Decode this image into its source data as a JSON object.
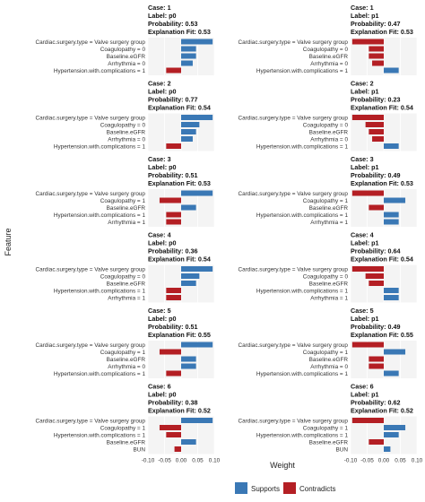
{
  "chart_data": {
    "type": "bar",
    "ylabel": "Feature",
    "xlabel": "Weight",
    "xlim": [
      -0.1,
      0.1
    ],
    "x_ticks": [
      -0.1,
      -0.05,
      0.0,
      0.05,
      0.1
    ],
    "x_tick_labels": [
      "-0.10",
      "-0.05",
      "0.00",
      "0.05",
      "0.10"
    ],
    "legend": {
      "placement": "bottom",
      "entries": [
        {
          "name": "Supports",
          "color": "#3a78b5"
        },
        {
          "name": "Contradicts",
          "color": "#b41f24"
        }
      ]
    },
    "panels": [
      {
        "case": "Case: 1",
        "label": "Label: p0",
        "probability": "Probability: 0.53",
        "fit": "Explanation Fit: 0.53",
        "bars": [
          {
            "feature": "Cardiac.surgery.type = Valve surgery group",
            "weight": 0.095
          },
          {
            "feature": "Coagulopathy = 0",
            "weight": 0.045
          },
          {
            "feature": "Baseline.eGFR",
            "weight": 0.045
          },
          {
            "feature": "Arrhythmia = 0",
            "weight": 0.035
          },
          {
            "feature": "Hypertension.with.complications = 1",
            "weight": -0.045
          }
        ]
      },
      {
        "case": "Case: 1",
        "label": "Label: p1",
        "probability": "Probability: 0.47",
        "fit": "Explanation Fit: 0.53",
        "bars": [
          {
            "feature": "Cardiac.surgery.type = Valve surgery group",
            "weight": -0.095
          },
          {
            "feature": "Coagulopathy = 0",
            "weight": -0.045
          },
          {
            "feature": "Baseline.eGFR",
            "weight": -0.045
          },
          {
            "feature": "Arrhythmia = 0",
            "weight": -0.035
          },
          {
            "feature": "Hypertension.with.complications = 1",
            "weight": 0.045
          }
        ]
      },
      {
        "case": "Case: 2",
        "label": "Label: p0",
        "probability": "Probability: 0.77",
        "fit": "Explanation Fit: 0.54",
        "bars": [
          {
            "feature": "Cardiac.surgery.type = Valve surgery group",
            "weight": 0.095
          },
          {
            "feature": "Coagulopathy = 0",
            "weight": 0.055
          },
          {
            "feature": "Baseline.eGFR",
            "weight": 0.045
          },
          {
            "feature": "Arrhythmia = 0",
            "weight": 0.035
          },
          {
            "feature": "Hypertension.with.complications = 1",
            "weight": -0.045
          }
        ]
      },
      {
        "case": "Case: 2",
        "label": "Label: p1",
        "probability": "Probability: 0.23",
        "fit": "Explanation Fit: 0.54",
        "bars": [
          {
            "feature": "Cardiac.surgery.type = Valve surgery group",
            "weight": -0.095
          },
          {
            "feature": "Coagulopathy = 0",
            "weight": -0.055
          },
          {
            "feature": "Baseline.eGFR",
            "weight": -0.045
          },
          {
            "feature": "Arrhythmia = 0",
            "weight": -0.035
          },
          {
            "feature": "Hypertension.with.complications = 1",
            "weight": 0.045
          }
        ]
      },
      {
        "case": "Case: 3",
        "label": "Label: p0",
        "probability": "Probability: 0.51",
        "fit": "Explanation Fit: 0.53",
        "bars": [
          {
            "feature": "Cardiac.surgery.type = Valve surgery group",
            "weight": 0.095
          },
          {
            "feature": "Coagulopathy = 1",
            "weight": -0.065
          },
          {
            "feature": "Baseline.eGFR",
            "weight": 0.045
          },
          {
            "feature": "Hypertension.with.complications = 1",
            "weight": -0.045
          },
          {
            "feature": "Arrhythmia = 1",
            "weight": -0.045
          }
        ]
      },
      {
        "case": "Case: 3",
        "label": "Label: p1",
        "probability": "Probability: 0.49",
        "fit": "Explanation Fit: 0.53",
        "bars": [
          {
            "feature": "Cardiac.surgery.type = Valve surgery group",
            "weight": -0.095
          },
          {
            "feature": "Coagulopathy = 1",
            "weight": 0.065
          },
          {
            "feature": "Baseline.eGFR",
            "weight": -0.045
          },
          {
            "feature": "Hypertension.with.complications = 1",
            "weight": 0.045
          },
          {
            "feature": "Arrhythmia = 1",
            "weight": 0.045
          }
        ]
      },
      {
        "case": "Case: 4",
        "label": "Label: p0",
        "probability": "Probability: 0.36",
        "fit": "Explanation Fit: 0.54",
        "bars": [
          {
            "feature": "Cardiac.surgery.type = Valve surgery group",
            "weight": 0.095
          },
          {
            "feature": "Coagulopathy = 0",
            "weight": 0.055
          },
          {
            "feature": "Baseline.eGFR",
            "weight": 0.045
          },
          {
            "feature": "Hypertension.with.complications = 1",
            "weight": -0.045
          },
          {
            "feature": "Arrhythmia = 1",
            "weight": -0.045
          }
        ]
      },
      {
        "case": "Case: 4",
        "label": "Label: p1",
        "probability": "Probability: 0.64",
        "fit": "Explanation Fit: 0.54",
        "bars": [
          {
            "feature": "Cardiac.surgery.type = Valve surgery group",
            "weight": -0.095
          },
          {
            "feature": "Coagulopathy = 0",
            "weight": -0.055
          },
          {
            "feature": "Baseline.eGFR",
            "weight": -0.045
          },
          {
            "feature": "Hypertension.with.complications = 1",
            "weight": 0.045
          },
          {
            "feature": "Arrhythmia = 1",
            "weight": 0.045
          }
        ]
      },
      {
        "case": "Case: 5",
        "label": "Label: p0",
        "probability": "Probability: 0.51",
        "fit": "Explanation Fit: 0.55",
        "bars": [
          {
            "feature": "Cardiac.surgery.type = Valve surgery group",
            "weight": 0.095
          },
          {
            "feature": "Coagulopathy = 1",
            "weight": -0.065
          },
          {
            "feature": "Baseline.eGFR",
            "weight": 0.045
          },
          {
            "feature": "Arrhythmia = 0",
            "weight": 0.045
          },
          {
            "feature": "Hypertension.with.complications = 1",
            "weight": -0.045
          }
        ]
      },
      {
        "case": "Case: 5",
        "label": "Label: p1",
        "probability": "Probability: 0.49",
        "fit": "Explanation Fit: 0.55",
        "bars": [
          {
            "feature": "Cardiac.surgery.type = Valve surgery group",
            "weight": -0.095
          },
          {
            "feature": "Coagulopathy = 1",
            "weight": 0.065
          },
          {
            "feature": "Baseline.eGFR",
            "weight": -0.045
          },
          {
            "feature": "Arrhythmia = 0",
            "weight": -0.045
          },
          {
            "feature": "Hypertension.with.complications = 1",
            "weight": 0.045
          }
        ]
      },
      {
        "case": "Case: 6",
        "label": "Label: p0",
        "probability": "Probability: 0.38",
        "fit": "Explanation Fit: 0.52",
        "bars": [
          {
            "feature": "Cardiac.surgery.type = Valve surgery group",
            "weight": 0.095
          },
          {
            "feature": "Coagulopathy = 1",
            "weight": -0.065
          },
          {
            "feature": "Hypertension.with.complications = 1",
            "weight": -0.045
          },
          {
            "feature": "Baseline.eGFR",
            "weight": 0.045
          },
          {
            "feature": "BUN",
            "weight": -0.02
          }
        ]
      },
      {
        "case": "Case: 6",
        "label": "Label: p1",
        "probability": "Probability: 0.62",
        "fit": "Explanation Fit: 0.52",
        "bars": [
          {
            "feature": "Cardiac.surgery.type = Valve surgery group",
            "weight": -0.095
          },
          {
            "feature": "Coagulopathy = 1",
            "weight": 0.065
          },
          {
            "feature": "Hypertension.with.complications = 1",
            "weight": 0.045
          },
          {
            "feature": "Baseline.eGFR",
            "weight": -0.045
          },
          {
            "feature": "BUN",
            "weight": 0.02
          }
        ]
      }
    ]
  }
}
